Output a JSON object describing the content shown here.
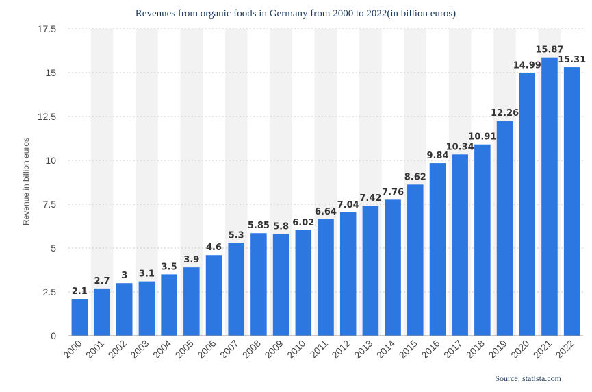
{
  "chart_data": {
    "type": "bar",
    "title": "Revenues from organic foods in Germany from 2000 to 2022(in billion euros)",
    "xlabel": "",
    "ylabel": "Revenue in billion euros",
    "source": "Source: statista.com",
    "ylim": [
      0,
      17.5
    ],
    "yticks": [
      "0",
      "2.5",
      "5",
      "7.5",
      "10",
      "12.5",
      "15",
      "17.5"
    ],
    "grid": true,
    "bar_color": "#2c78e0",
    "categories": [
      "2000",
      "2001",
      "2002",
      "2003",
      "2004",
      "2005",
      "2006",
      "2007",
      "2008",
      "2009",
      "2010",
      "2011",
      "2012",
      "2013",
      "2014",
      "2015",
      "2016",
      "2017",
      "2018",
      "2019",
      "2020",
      "2021",
      "2022"
    ],
    "values": [
      2.1,
      2.7,
      3,
      3.1,
      3.5,
      3.9,
      4.6,
      5.3,
      5.85,
      5.8,
      6.02,
      6.64,
      7.04,
      7.42,
      7.76,
      8.62,
      9.84,
      10.34,
      10.91,
      12.26,
      14.99,
      15.87,
      15.31
    ],
    "value_labels": [
      "2.1",
      "2.7",
      "3",
      "3.1",
      "3.5",
      "3.9",
      "4.6",
      "5.3",
      "5.85",
      "5.8",
      "6.02",
      "6.64",
      "7.04",
      "7.42",
      "7.76",
      "8.62",
      "9.84",
      "10.34",
      "10.91",
      "12.26",
      "14.99",
      "15.87",
      "15.31"
    ]
  }
}
